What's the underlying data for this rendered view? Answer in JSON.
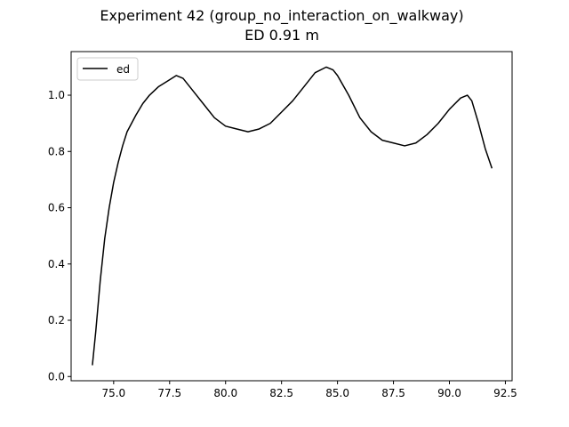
{
  "chart_data": {
    "type": "line",
    "title": "Experiment 42 (group_no_interaction_on_walkway)",
    "subtitle": "ED 0.91 m",
    "xlabel": "",
    "ylabel": "",
    "xlim": [
      73.1,
      92.8
    ],
    "ylim": [
      -0.015,
      1.155
    ],
    "xticks": [
      75.0,
      77.5,
      80.0,
      82.5,
      85.0,
      87.5,
      90.0,
      92.5
    ],
    "xtick_labels": [
      "75.0",
      "77.5",
      "80.0",
      "82.5",
      "85.0",
      "87.5",
      "90.0",
      "92.5"
    ],
    "yticks": [
      0.0,
      0.2,
      0.4,
      0.6,
      0.8,
      1.0
    ],
    "ytick_labels": [
      "0.0",
      "0.2",
      "0.4",
      "0.6",
      "0.8",
      "1.0"
    ],
    "grid": false,
    "legend_position": "top-left",
    "series": [
      {
        "name": "ed",
        "color": "#000000",
        "x": [
          74.05,
          74.2,
          74.4,
          74.6,
          74.8,
          75.0,
          75.2,
          75.4,
          75.6,
          75.8,
          76.0,
          76.3,
          76.6,
          77.0,
          77.4,
          77.8,
          78.1,
          78.5,
          79.0,
          79.5,
          80.0,
          80.5,
          81.0,
          81.5,
          82.0,
          82.5,
          83.0,
          83.5,
          84.0,
          84.5,
          84.8,
          85.0,
          85.5,
          86.0,
          86.5,
          87.0,
          87.5,
          88.0,
          88.5,
          89.0,
          89.5,
          90.0,
          90.5,
          90.8,
          91.0,
          91.3,
          91.6,
          91.9
        ],
        "values": [
          0.04,
          0.16,
          0.34,
          0.49,
          0.6,
          0.69,
          0.76,
          0.82,
          0.87,
          0.9,
          0.93,
          0.97,
          1.0,
          1.03,
          1.05,
          1.07,
          1.06,
          1.02,
          0.97,
          0.92,
          0.89,
          0.88,
          0.87,
          0.88,
          0.9,
          0.94,
          0.98,
          1.03,
          1.08,
          1.1,
          1.09,
          1.07,
          1.0,
          0.92,
          0.87,
          0.84,
          0.83,
          0.82,
          0.83,
          0.86,
          0.9,
          0.95,
          0.99,
          1.0,
          0.98,
          0.9,
          0.81,
          0.74
        ]
      }
    ]
  }
}
